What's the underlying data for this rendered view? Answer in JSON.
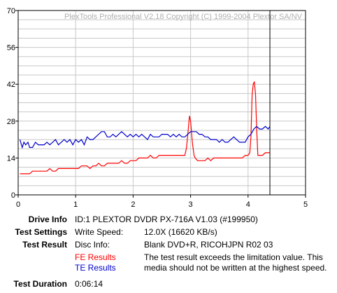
{
  "chart_data": {
    "type": "line",
    "watermark": "PlexTools Professional V2.18 Copyright (C) 1999-2004 Plextor SA/NV",
    "xlim": [
      0,
      5
    ],
    "ylim": [
      0,
      70
    ],
    "x_ticks": [
      "0",
      "1",
      "2",
      "3",
      "4",
      "5"
    ],
    "y_ticks": [
      "0",
      "14",
      "28",
      "42",
      "56",
      "70"
    ],
    "grid": true,
    "marker_x": 4.38,
    "series": [
      {
        "name": "FE Results",
        "color": "#ff0000",
        "x": [
          0.03,
          0.12,
          0.2,
          0.25,
          0.3,
          0.4,
          0.5,
          0.55,
          0.6,
          0.65,
          0.7,
          0.78,
          0.85,
          0.9,
          0.95,
          1.0,
          1.05,
          1.1,
          1.15,
          1.2,
          1.25,
          1.3,
          1.35,
          1.4,
          1.45,
          1.5,
          1.55,
          1.6,
          1.65,
          1.7,
          1.75,
          1.8,
          1.85,
          1.9,
          1.95,
          2.0,
          2.05,
          2.1,
          2.15,
          2.2,
          2.25,
          2.3,
          2.35,
          2.4,
          2.45,
          2.5,
          2.55,
          2.6,
          2.65,
          2.7,
          2.75,
          2.8,
          2.85,
          2.9,
          2.93,
          2.96,
          2.98,
          3.0,
          3.03,
          3.06,
          3.08,
          3.12,
          3.2,
          3.25,
          3.3,
          3.35,
          3.4,
          3.45,
          3.5,
          3.55,
          3.6,
          3.65,
          3.7,
          3.75,
          3.8,
          3.85,
          3.9,
          3.95,
          4.0,
          4.03,
          4.05,
          4.07,
          4.09,
          4.11,
          4.13,
          4.15,
          4.17,
          4.2,
          4.25,
          4.3,
          4.35,
          4.38
        ],
        "values": [
          8,
          8,
          8,
          9,
          9,
          9,
          9,
          10,
          9,
          9,
          10,
          10,
          10,
          10,
          10,
          10,
          10,
          11,
          11,
          11,
          10,
          11,
          11,
          12,
          11,
          11,
          12,
          12,
          12,
          12,
          12,
          13,
          12,
          12,
          13,
          13,
          13,
          14,
          14,
          14,
          14,
          15,
          14,
          14,
          15,
          15,
          15,
          15,
          15,
          15,
          15,
          15,
          15,
          15,
          18,
          25,
          30,
          28,
          20,
          15,
          14,
          13,
          13,
          13,
          14,
          13,
          14,
          14,
          14,
          14,
          14,
          14,
          14,
          14,
          14,
          14,
          14,
          15,
          15,
          16,
          22,
          38,
          42,
          43,
          38,
          25,
          15,
          15,
          15,
          16,
          16,
          16
        ]
      },
      {
        "name": "TE Results",
        "color": "#0000cc",
        "x": [
          0.03,
          0.07,
          0.1,
          0.13,
          0.17,
          0.2,
          0.25,
          0.3,
          0.35,
          0.4,
          0.45,
          0.5,
          0.55,
          0.6,
          0.65,
          0.7,
          0.75,
          0.8,
          0.85,
          0.9,
          0.95,
          1.0,
          1.05,
          1.1,
          1.15,
          1.2,
          1.25,
          1.3,
          1.35,
          1.4,
          1.45,
          1.5,
          1.55,
          1.6,
          1.65,
          1.7,
          1.75,
          1.8,
          1.85,
          1.9,
          1.95,
          2.0,
          2.05,
          2.1,
          2.15,
          2.2,
          2.25,
          2.3,
          2.35,
          2.4,
          2.45,
          2.5,
          2.55,
          2.6,
          2.65,
          2.7,
          2.75,
          2.8,
          2.85,
          2.9,
          2.95,
          3.0,
          3.05,
          3.1,
          3.15,
          3.2,
          3.25,
          3.3,
          3.35,
          3.4,
          3.45,
          3.5,
          3.55,
          3.6,
          3.65,
          3.7,
          3.75,
          3.8,
          3.85,
          3.9,
          3.95,
          4.0,
          4.05,
          4.1,
          4.15,
          4.2,
          4.25,
          4.3,
          4.35,
          4.38
        ],
        "values": [
          21,
          18,
          20,
          19,
          20,
          18,
          18,
          20,
          19,
          19,
          19,
          20,
          19,
          20,
          21,
          19,
          20,
          21,
          20,
          21,
          19,
          21,
          20,
          21,
          19,
          22,
          21,
          21,
          22,
          23,
          24,
          24,
          22,
          22,
          23,
          22,
          23,
          24,
          23,
          22,
          23,
          22,
          23,
          22,
          23,
          22,
          21,
          23,
          22,
          22,
          22,
          23,
          23,
          23,
          22,
          23,
          22,
          23,
          22,
          22,
          23,
          24,
          24,
          24,
          23,
          23,
          22,
          22,
          21,
          21,
          21,
          20,
          21,
          20,
          20,
          21,
          22,
          21,
          20,
          20,
          20,
          22,
          23,
          25,
          26,
          25,
          25,
          26,
          25,
          26
        ]
      }
    ]
  },
  "info": {
    "drive_info": {
      "label": "Drive Info",
      "value": "ID:1 PLEXTOR DVDR PX-716A V1.03 (#199950)"
    },
    "test_settings": {
      "label": "Test Settings",
      "key": "Write Speed:",
      "value": "12.0X (16620 KB/s)"
    },
    "test_result": {
      "label": "Test Result",
      "key": "Disc Info:",
      "value": "Blank DVD+R, RICOHJPN R02 03",
      "fe_legend": "FE Results",
      "te_legend": "TE Results",
      "fe_color": "#ff0000",
      "te_color": "#0000cc",
      "message": "The test result exceeds the limitation value. This media should not be written at the highest speed."
    },
    "test_duration": {
      "label": "Test Duration",
      "value": "0:06:14"
    }
  }
}
